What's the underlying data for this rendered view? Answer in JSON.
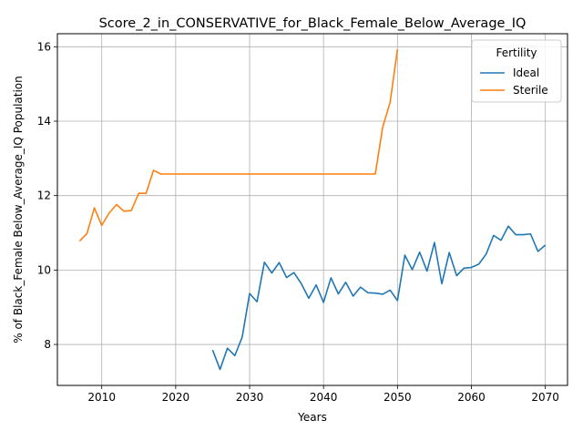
{
  "chart_data": {
    "type": "line",
    "title": "Score_2_in_CONSERVATIVE_for_Black_Female_Below_Average_IQ",
    "xlabel": "Years",
    "ylabel": "% of Black_Female Below_Average_IQ Population",
    "xlim": [
      2004,
      2073
    ],
    "ylim": [
      6.9,
      16.35
    ],
    "xticks": [
      2010,
      2020,
      2030,
      2040,
      2050,
      2060,
      2070
    ],
    "yticks": [
      8,
      10,
      12,
      14,
      16
    ],
    "grid": true,
    "legend": {
      "title": "Fertility",
      "position": "top-right"
    },
    "series": [
      {
        "name": "Ideal",
        "color": "#1f77b4",
        "points": [
          [
            2025,
            7.85
          ],
          [
            2026,
            7.33
          ],
          [
            2027,
            7.9
          ],
          [
            2028,
            7.7
          ],
          [
            2029,
            8.2
          ],
          [
            2030,
            9.37
          ],
          [
            2031,
            9.15
          ],
          [
            2032,
            10.21
          ],
          [
            2033,
            9.92
          ],
          [
            2034,
            10.2
          ],
          [
            2035,
            9.8
          ],
          [
            2036,
            9.93
          ],
          [
            2037,
            9.63
          ],
          [
            2038,
            9.24
          ],
          [
            2039,
            9.6
          ],
          [
            2040,
            9.13
          ],
          [
            2041,
            9.79
          ],
          [
            2042,
            9.36
          ],
          [
            2043,
            9.67
          ],
          [
            2044,
            9.3
          ],
          [
            2045,
            9.54
          ],
          [
            2046,
            9.39
          ],
          [
            2047,
            9.38
          ],
          [
            2048,
            9.35
          ],
          [
            2049,
            9.46
          ],
          [
            2050,
            9.18
          ],
          [
            2051,
            10.4
          ],
          [
            2052,
            10.01
          ],
          [
            2053,
            10.48
          ],
          [
            2054,
            9.97
          ],
          [
            2055,
            10.74
          ],
          [
            2056,
            9.63
          ],
          [
            2057,
            10.47
          ],
          [
            2058,
            9.85
          ],
          [
            2059,
            10.05
          ],
          [
            2060,
            10.07
          ],
          [
            2061,
            10.16
          ],
          [
            2062,
            10.43
          ],
          [
            2063,
            10.93
          ],
          [
            2064,
            10.8
          ],
          [
            2065,
            11.18
          ],
          [
            2066,
            10.95
          ],
          [
            2067,
            10.95
          ],
          [
            2068,
            10.97
          ],
          [
            2069,
            10.5
          ],
          [
            2070,
            10.67
          ]
        ]
      },
      {
        "name": "Sterile",
        "color": "#ff7f0e",
        "points": [
          [
            2007,
            10.78
          ],
          [
            2008,
            10.98
          ],
          [
            2009,
            11.67
          ],
          [
            2010,
            11.2
          ],
          [
            2011,
            11.53
          ],
          [
            2012,
            11.76
          ],
          [
            2013,
            11.58
          ],
          [
            2014,
            11.6
          ],
          [
            2015,
            12.06
          ],
          [
            2016,
            12.06
          ],
          [
            2017,
            12.68
          ],
          [
            2018,
            12.58
          ],
          [
            2019,
            12.58
          ],
          [
            2020,
            12.58
          ],
          [
            2025,
            12.58
          ],
          [
            2030,
            12.58
          ],
          [
            2035,
            12.58
          ],
          [
            2040,
            12.58
          ],
          [
            2045,
            12.58
          ],
          [
            2047,
            12.58
          ],
          [
            2048,
            13.84
          ],
          [
            2049,
            14.5
          ],
          [
            2050,
            15.93
          ]
        ]
      }
    ]
  }
}
